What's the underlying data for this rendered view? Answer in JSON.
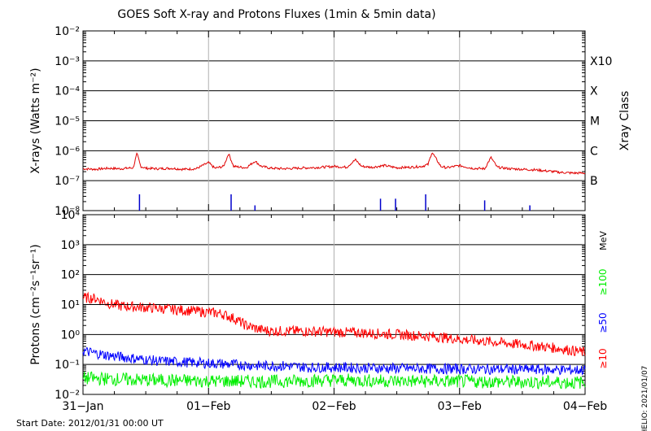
{
  "title": "GOES Soft X-ray and Protons Fluxes   (1min & 5min data)",
  "footer": {
    "start_date": "Start Date: 2012/01/31 00:00 UT",
    "stamp": "HELIO: 2021/01/07"
  },
  "colors": {
    "frame": "#000000",
    "xray_long": "#e00000",
    "xray_short": "#0000cc",
    "proton_10": "#ff0000",
    "proton_50": "#0000ff",
    "proton_100": "#00ee00",
    "day_lines": "#b0b0b0"
  },
  "chart_data": [
    {
      "type": "line",
      "name": "xray-panel",
      "ylabel": "X-rays (Watts m⁻²)",
      "yscale": "log",
      "ylim": [
        1e-08,
        0.01
      ],
      "ytick_labels": [
        "10⁻⁸",
        "10⁻⁷",
        "10⁻⁶",
        "10⁻⁵",
        "10⁻⁴",
        "10⁻³",
        "10⁻²"
      ],
      "xlim": [
        "2012-01-31",
        "2012-02-04"
      ],
      "xtick_labels": [
        "31−Jan",
        "01−Feb",
        "02−Feb",
        "03−Feb",
        "04−Feb"
      ],
      "right_axis_label": "Xray Class",
      "class_labels": [
        {
          "label": "B",
          "at": 1e-07
        },
        {
          "label": "C",
          "at": 1e-06
        },
        {
          "label": "M",
          "at": 1e-05
        },
        {
          "label": "X",
          "at": 0.0001
        },
        {
          "label": "X10",
          "at": 0.001
        }
      ],
      "grid": "horizontal at decades, vertical at day boundaries",
      "series": [
        {
          "color": "#e00000",
          "x_days": [
            0,
            0.1,
            0.2,
            0.3,
            0.4,
            0.43,
            0.46,
            0.5,
            0.6,
            0.7,
            0.8,
            0.9,
            1.0,
            1.05,
            1.12,
            1.16,
            1.2,
            1.3,
            1.37,
            1.42,
            1.5,
            1.6,
            1.7,
            1.8,
            1.9,
            2.0,
            2.1,
            2.17,
            2.22,
            2.3,
            2.4,
            2.5,
            2.6,
            2.7,
            2.75,
            2.78,
            2.85,
            2.9,
            3.0,
            3.1,
            3.2,
            3.25,
            3.3,
            3.4,
            3.5,
            3.6,
            3.7,
            3.8,
            3.9,
            4.0
          ],
          "y": [
            2.5e-07,
            2.4e-07,
            2.6e-07,
            2.5e-07,
            2.7e-07,
            8e-07,
            3e-07,
            2.6e-07,
            2.5e-07,
            2.6e-07,
            2.4e-07,
            2.5e-07,
            4e-07,
            2.6e-07,
            3e-07,
            8e-07,
            3e-07,
            2.7e-07,
            4.5e-07,
            3e-07,
            2.6e-07,
            2.5e-07,
            2.6e-07,
            2.7e-07,
            2.8e-07,
            3e-07,
            2.8e-07,
            5e-07,
            3e-07,
            2.8e-07,
            3.2e-07,
            2.7e-07,
            2.8e-07,
            3e-07,
            3.5e-07,
            9e-07,
            3e-07,
            2.7e-07,
            3.2e-07,
            2.6e-07,
            2.5e-07,
            6e-07,
            2.8e-07,
            2.5e-07,
            2.4e-07,
            2.3e-07,
            2.1e-07,
            1.9e-07,
            1.8e-07,
            1.8e-07
          ]
        },
        {
          "color": "#0000cc",
          "x_days": [
            0.45,
            1.18,
            1.37,
            2.37,
            2.49,
            2.73,
            3.2,
            3.56
          ],
          "y": [
            3.5e-08,
            3.5e-08,
            1.5e-08,
            2.5e-08,
            2.5e-08,
            3.5e-08,
            2.2e-08,
            1.5e-08
          ]
        }
      ]
    },
    {
      "type": "line",
      "name": "proton-panel",
      "ylabel": "Protons (cm⁻²s⁻¹sr⁻¹)",
      "yscale": "log",
      "ylim": [
        0.01,
        10000
      ],
      "ytick_labels": [
        "10⁻²",
        "10⁻¹",
        "10⁰",
        "10¹",
        "10²",
        "10³",
        "10⁴"
      ],
      "xlim": [
        "2012-01-31",
        "2012-02-04"
      ],
      "xtick_labels": [
        "31−Jan",
        "01−Feb",
        "02−Feb",
        "03−Feb",
        "04−Feb"
      ],
      "threshold": {
        "value": 10,
        "style": "dashed"
      },
      "legend_unit": "MeV",
      "series": [
        {
          "name": "≥10",
          "color": "#ff0000",
          "x_days": [
            0,
            0.1,
            0.2,
            0.3,
            0.5,
            0.7,
            0.9,
            1.0,
            1.1,
            1.2,
            1.3,
            1.4,
            1.5,
            1.7,
            1.9,
            2.0,
            2.2,
            2.4,
            2.6,
            2.8,
            3.0,
            3.2,
            3.4,
            3.6,
            3.8,
            4.0
          ],
          "y": [
            17,
            16,
            11,
            9,
            8,
            7,
            6,
            5.5,
            5,
            3.5,
            2,
            1.5,
            1.3,
            1.3,
            1.25,
            1.2,
            1.15,
            1.05,
            0.95,
            0.85,
            0.7,
            0.6,
            0.5,
            0.42,
            0.34,
            0.25
          ]
        },
        {
          "name": "≥50",
          "color": "#0000ff",
          "x_days": [
            0,
            0.2,
            0.4,
            0.6,
            0.8,
            1.0,
            1.2,
            1.4,
            1.6,
            1.8,
            2.0,
            2.4,
            2.8,
            3.2,
            3.6,
            4.0
          ],
          "y": [
            0.28,
            0.2,
            0.16,
            0.13,
            0.12,
            0.11,
            0.1,
            0.09,
            0.09,
            0.08,
            0.08,
            0.075,
            0.072,
            0.07,
            0.068,
            0.065
          ]
        },
        {
          "name": "≥100",
          "color": "#00ee00",
          "x_days": [
            0,
            0.5,
            1.0,
            1.5,
            2.0,
            2.5,
            3.0,
            3.5,
            4.0
          ],
          "y": [
            0.035,
            0.03,
            0.028,
            0.027,
            0.03,
            0.028,
            0.027,
            0.026,
            0.025
          ]
        }
      ]
    }
  ]
}
